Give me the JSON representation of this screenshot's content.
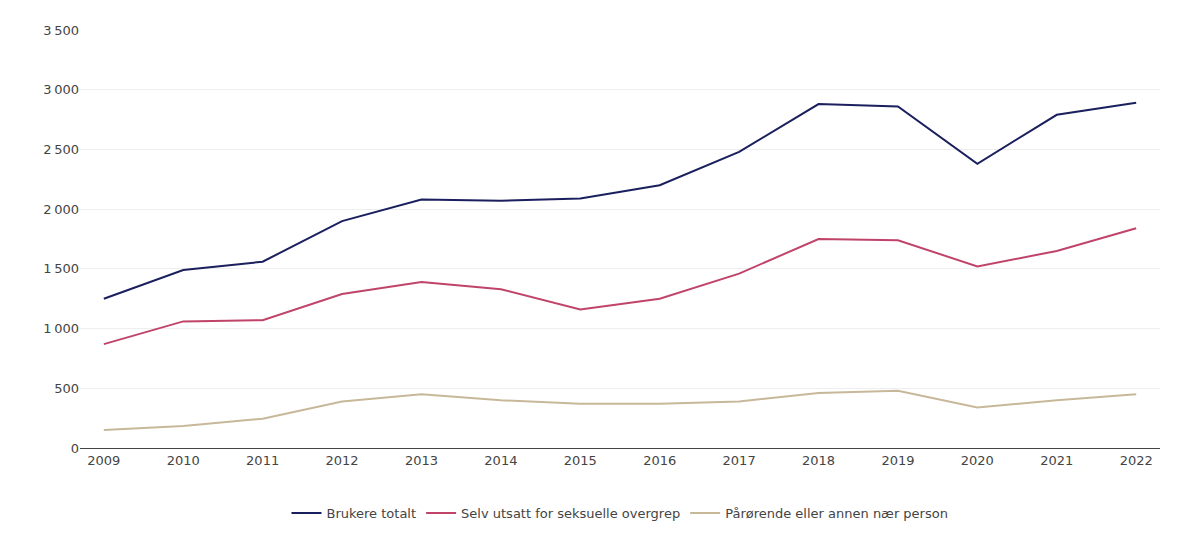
{
  "chart_data": {
    "type": "line",
    "x": [
      2009,
      2010,
      2011,
      2012,
      2013,
      2014,
      2015,
      2016,
      2017,
      2018,
      2019,
      2020,
      2021,
      2022
    ],
    "series": [
      {
        "name": "Brukere totalt",
        "color": "#1a1f5e",
        "values": [
          1250,
          1490,
          1560,
          1900,
          2080,
          2070,
          2090,
          2200,
          2480,
          2880,
          2860,
          2380,
          2790,
          2890
        ]
      },
      {
        "name": "Selv utsatt for seksuelle overgrep",
        "color": "#c0446a",
        "values": [
          870,
          1060,
          1070,
          1290,
          1390,
          1330,
          1160,
          1250,
          1460,
          1750,
          1740,
          1520,
          1650,
          1840
        ]
      },
      {
        "name": "Pårørende eller annen nær person",
        "color": "#c8b89a",
        "values": [
          150,
          185,
          245,
          390,
          450,
          400,
          370,
          370,
          390,
          460,
          480,
          340,
          400,
          450
        ]
      }
    ],
    "xlim": [
      2008.7,
      2022.3
    ],
    "xticks": [
      2009,
      2010,
      2011,
      2012,
      2013,
      2014,
      2015,
      2016,
      2017,
      2018,
      2019,
      2020,
      2021,
      2022
    ],
    "ylim": [
      0,
      3500
    ],
    "yticks": [
      0,
      500,
      {
        "value": 1000,
        "label": "1 000"
      },
      {
        "value": 1500,
        "label": "1 500"
      },
      {
        "value": 2000,
        "label": "2 000"
      },
      {
        "value": 2500,
        "label": "2 500"
      },
      {
        "value": 3000,
        "label": "3 000"
      },
      {
        "value": 3500,
        "label": "3 500"
      }
    ],
    "grid": true,
    "legend": "bottom"
  }
}
